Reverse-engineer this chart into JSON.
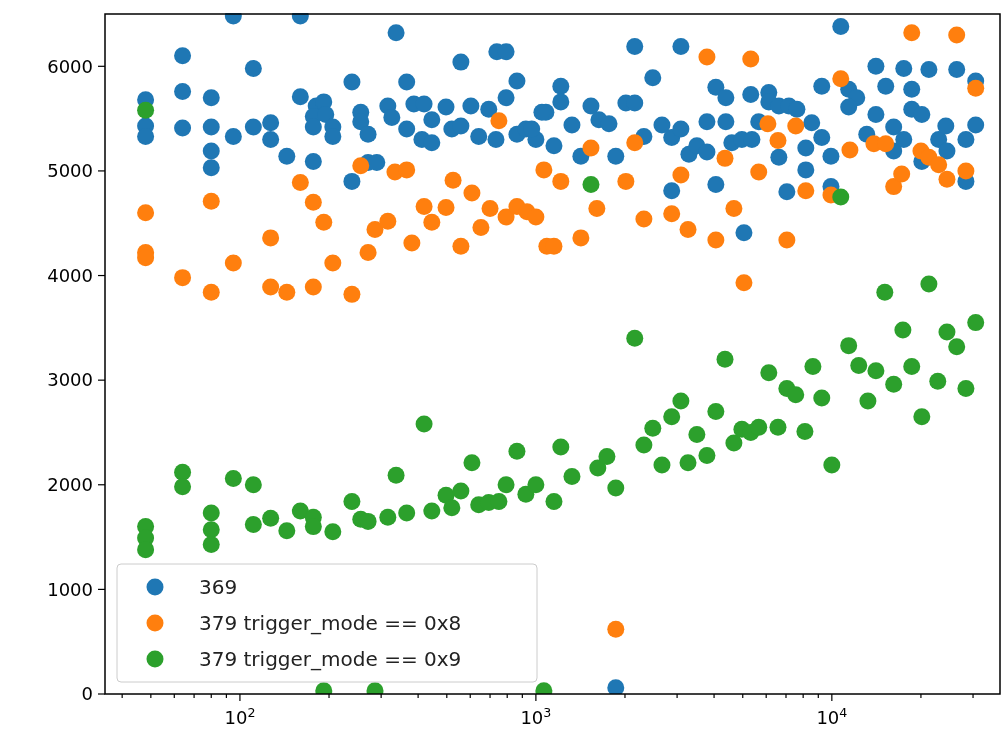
{
  "chart_data": {
    "type": "scatter",
    "log": "x",
    "grid": false,
    "legend": "bottom left",
    "marker": "circle",
    "xlim": [
      35,
      37000
    ],
    "ylim": [
      0,
      6500
    ],
    "xticks": [
      {
        "value": 40,
        "label": null
      },
      {
        "value": 50,
        "label": null
      },
      {
        "value": 60,
        "label": null
      },
      {
        "value": 70,
        "label": null
      },
      {
        "value": 80,
        "label": null
      },
      {
        "value": 90,
        "label": null
      },
      {
        "value": 100,
        "label": "10$^{2}$"
      },
      {
        "value": 200,
        "label": null
      },
      {
        "value": 300,
        "label": null
      },
      {
        "value": 400,
        "label": null
      },
      {
        "value": 500,
        "label": null
      },
      {
        "value": 600,
        "label": null
      },
      {
        "value": 700,
        "label": null
      },
      {
        "value": 800,
        "label": null
      },
      {
        "value": 900,
        "label": null
      },
      {
        "value": 1000,
        "label": "10$^{3}$"
      },
      {
        "value": 2000,
        "label": null
      },
      {
        "value": 3000,
        "label": null
      },
      {
        "value": 4000,
        "label": null
      },
      {
        "value": 5000,
        "label": null
      },
      {
        "value": 6000,
        "label": null
      },
      {
        "value": 7000,
        "label": null
      },
      {
        "value": 8000,
        "label": null
      },
      {
        "value": 9000,
        "label": null
      },
      {
        "value": 10000,
        "label": "10$^{4}$"
      },
      {
        "value": 20000,
        "label": null
      },
      {
        "value": 30000,
        "label": null
      }
    ],
    "yticks": [
      0,
      1000,
      2000,
      3000,
      4000,
      5000,
      6000
    ],
    "series": [
      {
        "name": "369",
        "color": "#1f77b4",
        "x": [
          95,
          160,
          337,
          64,
          111,
          48,
          48,
          48,
          64,
          64,
          80,
          80,
          80,
          80,
          95,
          111,
          127,
          127,
          144,
          160,
          177,
          181,
          192,
          177,
          177,
          195,
          206,
          206,
          239,
          239,
          256,
          256,
          271,
          271,
          290,
          316,
          326,
          366,
          366,
          387,
          419,
          412,
          445,
          445,
          497,
          520,
          558,
          558,
          603,
          641,
          693,
          733,
          738,
          793,
          793,
          863,
          863,
          925,
          1000,
          1081,
          968,
          1048,
          1151,
          1214,
          1214,
          1324,
          1419,
          1535,
          1633,
          1766,
          1862,
          2014,
          2158,
          2158,
          2317,
          2483,
          2667,
          2877,
          3090,
          3090,
          2877,
          3289,
          3499,
          3784,
          3784,
          4056,
          4385,
          4385,
          4056,
          4592,
          4966,
          5370,
          5047,
          5321,
          5662,
          6124,
          6124,
          6622,
          7161,
          7621,
          6622,
          7047,
          8166,
          8166,
          8551,
          9247,
          9247,
          9931,
          9931,
          10720,
          11400,
          12140,
          11400,
          13120,
          14090,
          14090,
          15210,
          16180,
          16180,
          17500,
          17500,
          18620,
          18620,
          20140,
          20140,
          21280,
          22960,
          24270,
          24490,
          26420,
          28380,
          28380,
          30630,
          30630,
          1862
        ],
        "values": [
          6480,
          6480,
          6320,
          6100,
          5980,
          5680,
          5430,
          5330,
          5760,
          5410,
          5700,
          5420,
          5190,
          5030,
          5330,
          5420,
          5460,
          5300,
          5140,
          5710,
          5090,
          5620,
          5660,
          5520,
          5420,
          5540,
          5420,
          5330,
          5850,
          4900,
          5560,
          5470,
          5350,
          5080,
          5080,
          5620,
          5510,
          5850,
          5400,
          5640,
          5640,
          5300,
          5270,
          5490,
          5610,
          5400,
          6040,
          5430,
          5620,
          5330,
          5590,
          5300,
          6140,
          6140,
          5700,
          5860,
          5350,
          5400,
          5300,
          5560,
          5400,
          5560,
          5240,
          5810,
          5660,
          5440,
          5140,
          5620,
          5490,
          5450,
          5140,
          5650,
          5650,
          6190,
          5330,
          5890,
          5440,
          5320,
          5400,
          6190,
          4810,
          5160,
          5240,
          5180,
          5470,
          5800,
          5700,
          5470,
          4870,
          5270,
          5300,
          5300,
          4410,
          5730,
          5470,
          5750,
          5660,
          5620,
          5620,
          5590,
          5130,
          4800,
          5220,
          5010,
          5460,
          5320,
          5810,
          5140,
          4850,
          6380,
          5780,
          5700,
          5610,
          5350,
          6000,
          5540,
          5810,
          5420,
          5190,
          5980,
          5300,
          5780,
          5590,
          5540,
          5090,
          5970,
          5300,
          5430,
          5190,
          5970,
          5300,
          4900,
          5860,
          5440,
          60
        ]
      },
      {
        "name": "379 trigger_mode == 0x8",
        "color": "#ff7f0e",
        "x": [
          48,
          48,
          48,
          64,
          80,
          80,
          95,
          127,
          127,
          144,
          160,
          177,
          177,
          192,
          206,
          239,
          256,
          271,
          286,
          316,
          334,
          366,
          381,
          419,
          445,
          497,
          525,
          558,
          608,
          652,
          700,
          750,
          793,
          863,
          933,
          1000,
          1064,
          1089,
          1151,
          1214,
          1419,
          1535,
          1607,
          2014,
          2158,
          2317,
          2877,
          3090,
          3266,
          3784,
          4056,
          4355,
          4667,
          5047,
          5321,
          5662,
          6081,
          6577,
          7047,
          7551,
          8166,
          9931,
          10720,
          11510,
          13870,
          15210,
          16180,
          17220,
          18620,
          20000,
          21280,
          22960,
          24490,
          26420,
          28380,
          30630,
          1862
        ],
        "values": [
          4600,
          4220,
          4170,
          3980,
          4710,
          3840,
          4120,
          4360,
          3890,
          3840,
          4890,
          4700,
          3890,
          4510,
          4120,
          3820,
          5050,
          4220,
          4440,
          4520,
          4990,
          5010,
          4310,
          4660,
          4510,
          4650,
          4910,
          4280,
          4790,
          4460,
          4640,
          5480,
          4560,
          4660,
          4610,
          4560,
          5010,
          4280,
          4280,
          4900,
          4360,
          5220,
          4640,
          4900,
          5270,
          4540,
          4590,
          4960,
          4440,
          6090,
          4340,
          5120,
          4640,
          3930,
          6070,
          4990,
          5450,
          5290,
          4340,
          5430,
          4810,
          4770,
          5880,
          5200,
          5260,
          5260,
          4850,
          4970,
          6320,
          5190,
          5130,
          5060,
          4920,
          6300,
          5000,
          5790,
          620
        ]
      },
      {
        "name": "379 trigger_mode == 0x9",
        "color": "#2ca02c",
        "x": [
          48,
          48,
          48,
          48,
          64,
          64,
          80,
          80,
          80,
          95,
          111,
          111,
          127,
          144,
          160,
          177,
          177,
          206,
          239,
          256,
          271,
          316,
          337,
          366,
          419,
          445,
          497,
          520,
          558,
          608,
          641,
          693,
          750,
          793,
          863,
          925,
          1000,
          192,
          286,
          1064,
          1151,
          1214,
          1324,
          1619,
          1738,
          1862,
          2158,
          2317,
          2483,
          2667,
          2877,
          3090,
          3266,
          3499,
          3784,
          4056,
          4355,
          4667,
          4966,
          5321,
          5662,
          6124,
          6577,
          7047,
          7551,
          8110,
          8630,
          9247,
          10000,
          11400,
          12330,
          14090,
          13240,
          16180,
          18620,
          20140,
          22800,
          26420,
          28380,
          15100,
          21280,
          17380,
          24490,
          30630,
          1535,
          10720
        ],
        "values": [
          5580,
          1600,
          1490,
          1380,
          2120,
          1980,
          1730,
          1570,
          1430,
          2060,
          2000,
          1620,
          1680,
          1560,
          1750,
          1690,
          1600,
          1550,
          1840,
          1670,
          1650,
          1690,
          2090,
          1730,
          2580,
          1750,
          1900,
          1780,
          1940,
          2210,
          1810,
          1830,
          1840,
          2000,
          2320,
          1910,
          2000,
          30,
          30,
          30,
          1840,
          2360,
          2080,
          2160,
          2270,
          1970,
          3400,
          2380,
          2540,
          2190,
          2650,
          2800,
          2210,
          2480,
          2280,
          2700,
          3200,
          2400,
          2530,
          2500,
          2550,
          3070,
          2550,
          2920,
          2860,
          2510,
          3130,
          2830,
          2190,
          3330,
          3140,
          3090,
          2800,
          2960,
          3130,
          2650,
          2990,
          3320,
          2920,
          3840,
          3920,
          3480,
          3460,
          3550,
          4870,
          4750
        ]
      }
    ]
  }
}
